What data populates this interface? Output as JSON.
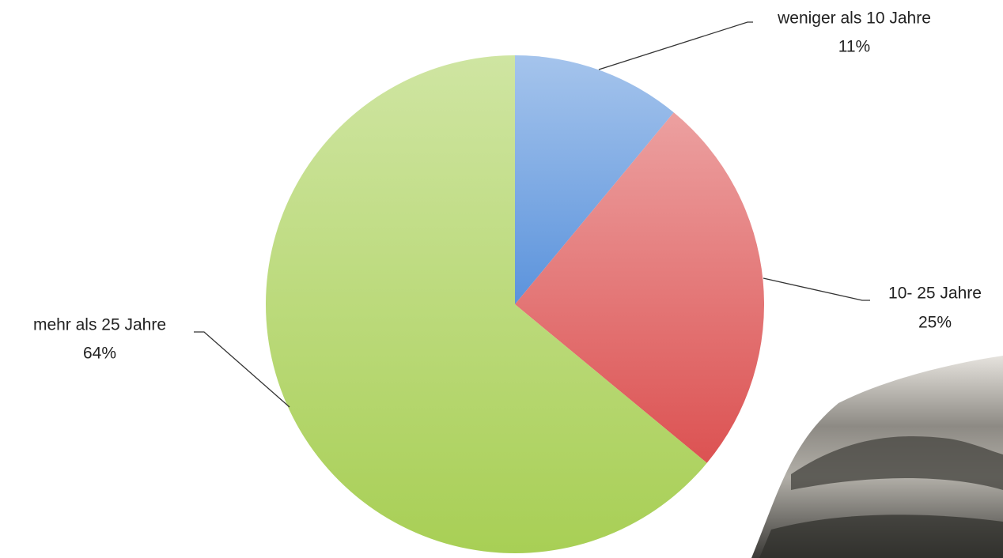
{
  "chart_data": {
    "type": "pie",
    "categories": [
      "weniger als 10 Jahre",
      "10- 25 Jahre",
      "mehr als 25 Jahre"
    ],
    "values": [
      11,
      25,
      64
    ],
    "value_labels": [
      "11%",
      "25%",
      "64%"
    ],
    "colors": [
      "#5b93dc",
      "#dc5252",
      "#a8cf55"
    ]
  }
}
